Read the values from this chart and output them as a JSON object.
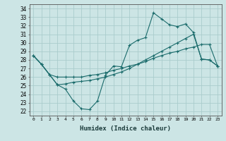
{
  "xlabel": "Humidex (Indice chaleur)",
  "ylabel": "",
  "bg_color": "#cce5e5",
  "grid_color": "#aacccc",
  "line_color": "#1a6b6b",
  "xlim": [
    -0.5,
    23.5
  ],
  "ylim": [
    21.5,
    34.5
  ],
  "yticks": [
    22,
    23,
    24,
    25,
    26,
    27,
    28,
    29,
    30,
    31,
    32,
    33,
    34
  ],
  "xticks": [
    0,
    1,
    2,
    3,
    4,
    5,
    6,
    7,
    8,
    9,
    10,
    11,
    12,
    13,
    14,
    15,
    16,
    17,
    18,
    19,
    20,
    21,
    22,
    23
  ],
  "line1": [
    28.5,
    27.5,
    26.3,
    25.1,
    24.6,
    23.2,
    22.3,
    22.2,
    23.2,
    26.2,
    27.3,
    27.2,
    29.7,
    30.3,
    30.6,
    33.5,
    32.8,
    32.1,
    31.9,
    32.2,
    31.2,
    28.1,
    28.0,
    27.3
  ],
  "line2": [
    28.5,
    27.5,
    26.3,
    26.0,
    26.0,
    26.0,
    26.0,
    26.2,
    26.3,
    26.5,
    26.8,
    27.0,
    27.3,
    27.5,
    27.8,
    28.2,
    28.5,
    28.8,
    29.0,
    29.3,
    29.5,
    29.8,
    29.8,
    27.3
  ],
  "line3": [
    28.5,
    27.5,
    26.3,
    25.1,
    25.2,
    25.4,
    25.5,
    25.6,
    25.8,
    26.0,
    26.3,
    26.6,
    27.0,
    27.5,
    28.0,
    28.5,
    29.0,
    29.5,
    30.0,
    30.5,
    31.0,
    28.1,
    28.0,
    27.3
  ]
}
